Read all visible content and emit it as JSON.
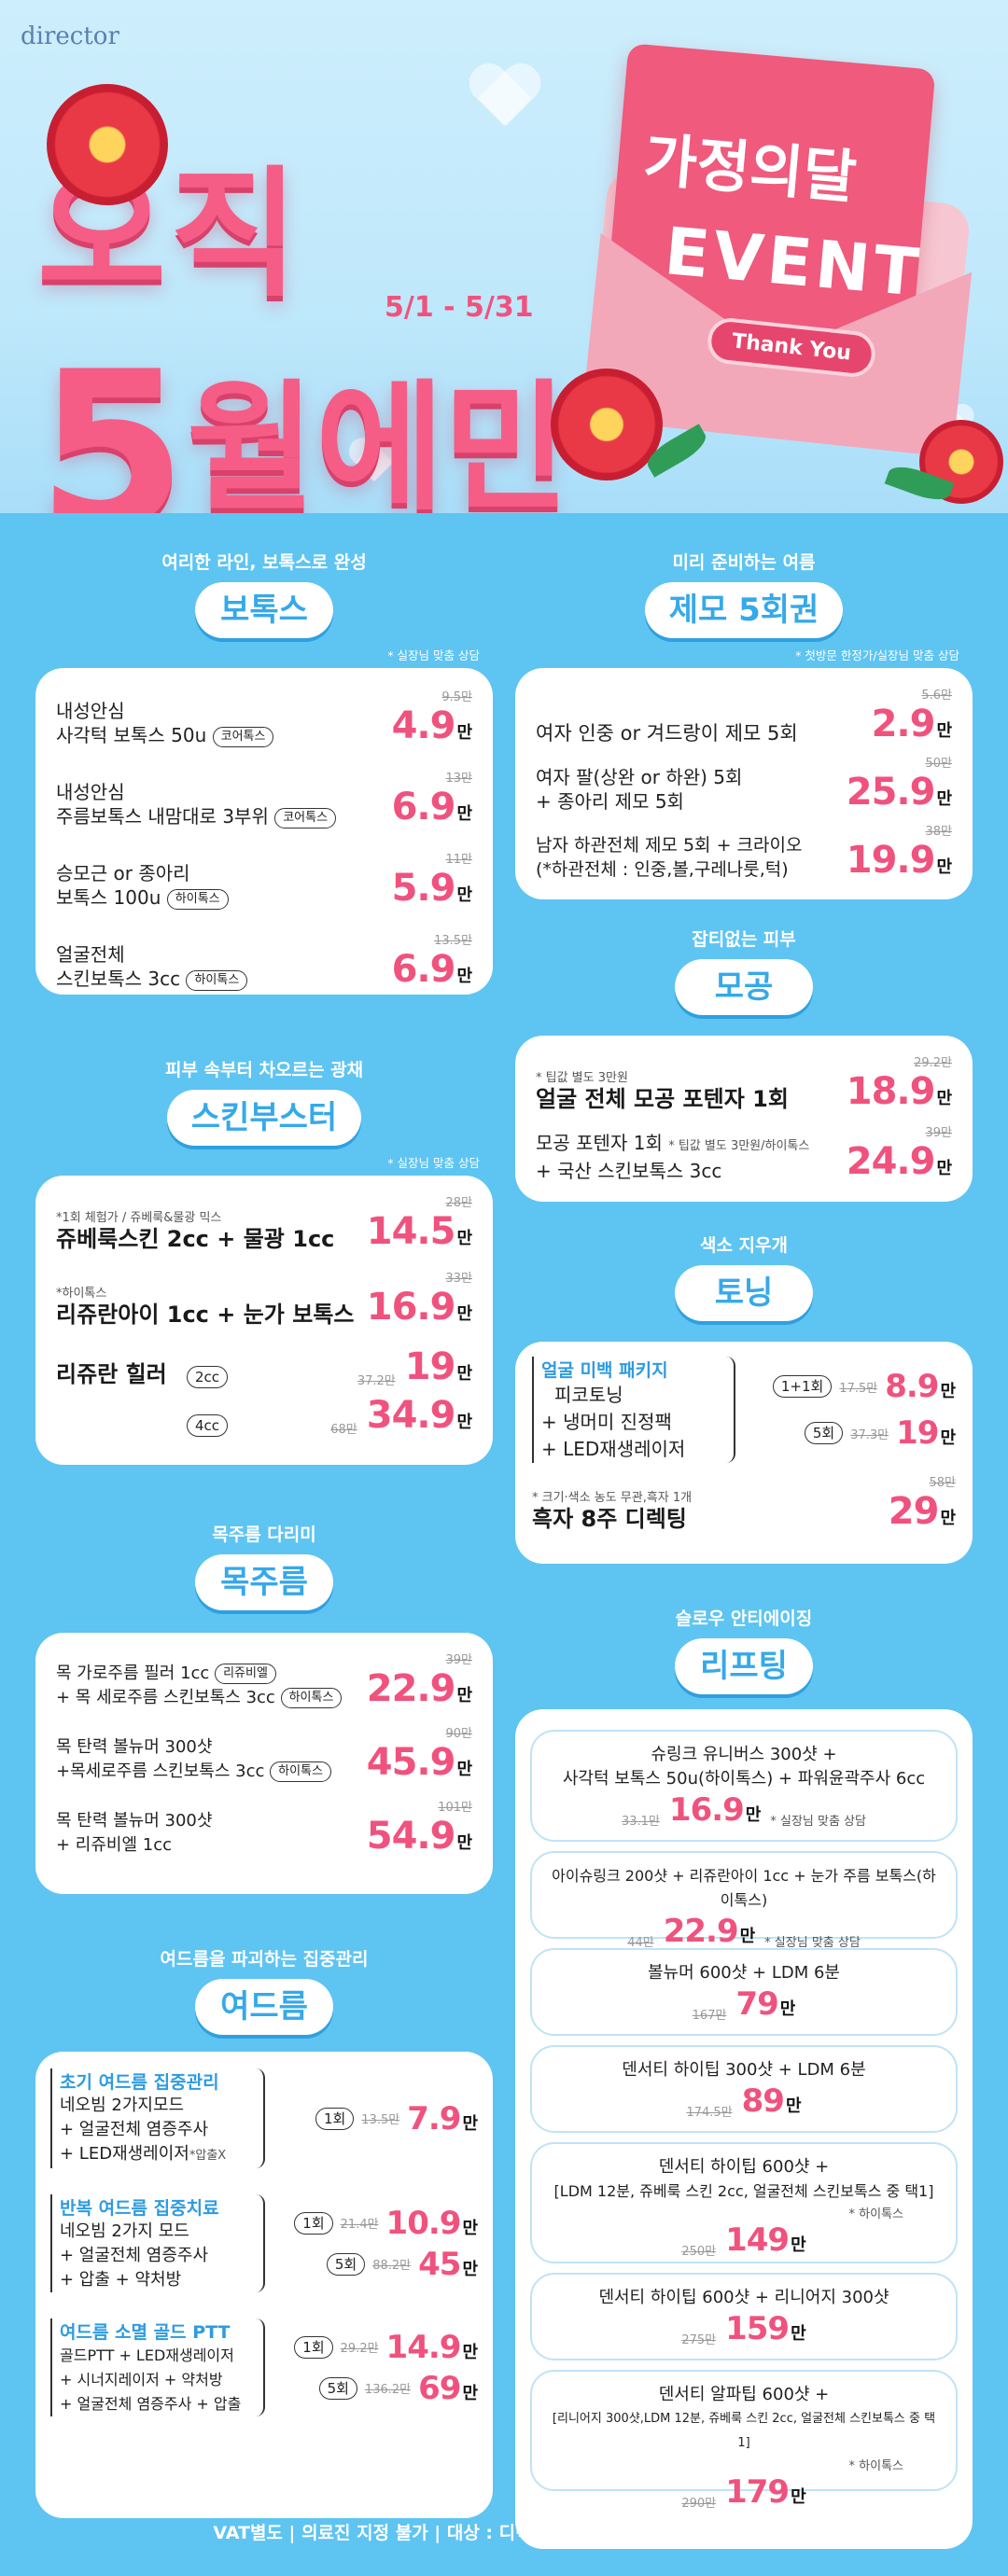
{
  "brand": "director",
  "hero": {
    "line1": "오직",
    "month_num": "5",
    "month_rest": "월에만",
    "date_range": "5/1 - 5/31",
    "event_title_1": "가정의달",
    "event_title_2": "EVENT",
    "thank_you": "Thank You"
  },
  "botox": {
    "sub": "여리한 라인, 보톡스로 완성",
    "title": "보톡스",
    "note": "* 실장님 맞춤 상담",
    "items": [
      {
        "line1": "내성안심",
        "line2": "사각턱 보톡스 50u",
        "tag": "코어톡스",
        "orig": "9.5만",
        "price": "4.9",
        "unit": "만"
      },
      {
        "line1": "내성안심",
        "line2": "주름보톡스 내맘대로 3부위",
        "tag": "코어톡스",
        "orig": "13만",
        "price": "6.9",
        "unit": "만"
      },
      {
        "line1": "승모근 or 종아리",
        "line2": "보톡스 100u",
        "tag": "하이톡스",
        "orig": "11만",
        "price": "5.9",
        "unit": "만"
      },
      {
        "line1": "얼굴전체",
        "line2": "스킨보톡스 3cc",
        "tag": "하이톡스",
        "orig": "13.5만",
        "price": "6.9",
        "unit": "만"
      }
    ]
  },
  "booster": {
    "sub": "피부 속부터 차오르는 광채",
    "title": "스킨부스터",
    "note": "* 실장님 맞춤 상담",
    "items": [
      {
        "note": "*1회 체험가 / 쥬베룩&물광 믹스",
        "name": "쥬베룩스킨 2cc + 물광 1cc",
        "orig": "28만",
        "price": "14.5",
        "unit": "만"
      },
      {
        "note": "*하이톡스",
        "name": "리쥬란아이 1cc + 눈가 보톡스",
        "orig": "33만",
        "price": "16.9",
        "unit": "만"
      }
    ],
    "healer": {
      "name": "리쥬란 힐러",
      "opt1": "2cc",
      "orig1": "37.2만",
      "price1": "19",
      "unit1": "만",
      "opt2": "4cc",
      "orig2": "68만",
      "price2": "34.9",
      "unit2": "만"
    }
  },
  "neck": {
    "sub": "목주름 다리미",
    "title": "목주름",
    "items": [
      {
        "line1": "목 가로주름 필러 1cc",
        "tag1": "리쥬비엘",
        "line2": "+ 목 세로주름 스킨보톡스 3cc",
        "tag2": "하이톡스",
        "orig": "39만",
        "price": "22.9",
        "unit": "만"
      },
      {
        "line1": "목 탄력 볼뉴머 300샷",
        "tag1": "",
        "line2": "+목세로주름 스킨보톡스 3cc",
        "tag2": "하이톡스",
        "orig": "90만",
        "price": "45.9",
        "unit": "만"
      },
      {
        "line1": "목 탄력 볼뉴머 300샷",
        "tag1": "",
        "line2": "+ 리쥬비엘 1cc",
        "tag2": "",
        "orig": "101만",
        "price": "54.9",
        "unit": "만"
      }
    ]
  },
  "acne": {
    "sub": "여드름을 파괴하는 집중관리",
    "title": "여드름",
    "groups": [
      {
        "head": "초기 여드름 집중관리",
        "lines": [
          "네오빔 2가지모드",
          "+ 얼굴전체 염증주사",
          "+ LED재생레이저"
        ],
        "line3_note": "*압출X",
        "options": [
          {
            "count": "1회",
            "orig": "13.5만",
            "price": "7.9",
            "unit": "만"
          }
        ]
      },
      {
        "head": "반복 여드름 집중치료",
        "lines": [
          "네오빔 2가지 모드",
          "+ 얼굴전체 염증주사",
          "+ 압출 + 약처방"
        ],
        "line3_note": "",
        "options": [
          {
            "count": "1회",
            "orig": "21.4만",
            "price": "10.9",
            "unit": "만"
          },
          {
            "count": "5회",
            "orig": "88.2만",
            "price": "45",
            "unit": "만"
          }
        ]
      },
      {
        "head": "여드름 소멸 골드 PTT",
        "lines": [
          "골드PTT + LED재생레이저",
          "+ 시너지레이저 + 약처방",
          "+ 얼굴전체 염증주사 + 압출"
        ],
        "line3_note": "",
        "options": [
          {
            "count": "1회",
            "orig": "29.2만",
            "price": "14.9",
            "unit": "만"
          },
          {
            "count": "5회",
            "orig": "136.2만",
            "price": "69",
            "unit": "만"
          }
        ]
      }
    ]
  },
  "hair": {
    "sub": "미리 준비하는 여름",
    "title": "제모 5회권",
    "note": "* 첫방문 한정가/실장님 맞춤 상담",
    "items": [
      {
        "line1": "여자 인중 or 겨드랑이 제모 5회",
        "line2": "",
        "orig": "5.6만",
        "price": "2.9",
        "unit": "만"
      },
      {
        "line1": "여자 팔(상완 or 하완) 5회",
        "line2": "+ 종아리 제모 5회",
        "orig": "50만",
        "price": "25.9",
        "unit": "만"
      },
      {
        "line1": "남자 하관전체 제모 5회 + 크라이오",
        "line2": "(*하관전체 : 인중,볼,구레나룻,턱)",
        "orig": "38만",
        "price": "19.9",
        "unit": "만"
      }
    ]
  },
  "pore": {
    "sub": "잡티없는 피부",
    "title": "모공",
    "items": [
      {
        "note": "* 팁값 별도 3만원",
        "line1": "얼굴 전체 모공 포텐자 1회",
        "line2": "",
        "orig": "29.2만",
        "price": "18.9",
        "unit": "만"
      },
      {
        "note": "",
        "line1": "모공 포텐자 1회",
        "inline_note": "* 팁값 별도 3만원/하이톡스",
        "line2": "+ 국산 스킨보톡스 3cc",
        "orig": "39만",
        "price": "24.9",
        "unit": "만"
      }
    ]
  },
  "toning": {
    "sub": "색소 지우개",
    "title": "토닝",
    "package_head": "얼굴 미백 패키지",
    "package_lines": [
      "피코토닝",
      "+ 냉머미 진정팩",
      "+ LED재생레이저"
    ],
    "options": [
      {
        "count": "1+1회",
        "orig": "17.5만",
        "price": "8.9",
        "unit": "만"
      },
      {
        "count": "5회",
        "orig": "37.3만",
        "price": "19",
        "unit": "만"
      }
    ],
    "mole_note": "* 크기·색소 농도 무관,흑자 1개",
    "mole_name": "흑자 8주 디렉팅",
    "mole_orig": "58만",
    "mole_price": "29",
    "mole_unit": "만"
  },
  "lifting": {
    "sub": "슬로우 안티에이징",
    "title": "리프팅",
    "items": [
      {
        "lines": [
          "슈링크 유니버스 300샷 +",
          "사각턱 보톡스 50u(하이톡스) + 파워윤곽주사 6cc"
        ],
        "orig": "33.1만",
        "price": "16.9",
        "unit": "만",
        "after": "* 실장님 맞춤 상담",
        "extra": ""
      },
      {
        "lines": [
          "아이슈링크 200샷 + 리쥬란아이 1cc + 눈가 주름 보톡스(하이톡스)"
        ],
        "orig": "44만",
        "price": "22.9",
        "unit": "만",
        "after": "* 실장님 맞춤 상담",
        "extra": ""
      },
      {
        "lines": [
          "볼뉴머 600샷 + LDM 6분"
        ],
        "orig": "167만",
        "price": "79",
        "unit": "만",
        "after": "",
        "extra": ""
      },
      {
        "lines": [
          "덴서티 하이팁 300샷 + LDM 6분"
        ],
        "orig": "174.5만",
        "price": "89",
        "unit": "만",
        "after": "",
        "extra": ""
      },
      {
        "lines": [
          "덴서티 하이팁 600샷 +",
          "[LDM 12분, 쥬베룩 스킨 2cc, 얼굴전체 스킨보톡스 중 택1]"
        ],
        "orig": "250만",
        "price": "149",
        "unit": "만",
        "after": "",
        "extra": "* 하이톡스"
      },
      {
        "lines": [
          "덴서티 하이팁 600샷 + 리니어지 300샷"
        ],
        "orig": "275만",
        "price": "159",
        "unit": "만",
        "after": "",
        "extra": ""
      },
      {
        "lines": [
          "덴서티 알파팁 600샷 +",
          "[리니어지 300샷,LDM 12분, 쥬베룩 스킨 2cc, 얼굴전체 스킨보톡스 중 택1]"
        ],
        "orig": "290만",
        "price": "179",
        "unit": "만",
        "after": "",
        "extra": "* 하이톡스"
      }
    ]
  },
  "footer": "VAT별도 | 의료진 지정 불가 | 대상 : 디렉터의원 울산점 카카오톡 플러스친구"
}
